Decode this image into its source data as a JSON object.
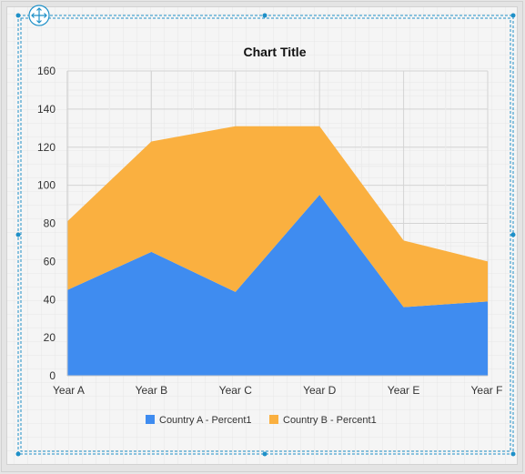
{
  "chart_data": {
    "type": "area",
    "stacked": true,
    "title": "Chart Title",
    "xlabel": "",
    "ylabel": "",
    "categories": [
      "Year A",
      "Year B",
      "Year C",
      "Year D",
      "Year E",
      "Year F"
    ],
    "series": [
      {
        "name": "Country A - Percent1",
        "values": [
          45,
          65,
          44,
          95,
          36,
          39
        ],
        "color": "#3f8cf0"
      },
      {
        "name": "Country B - Percent1",
        "values": [
          36,
          58,
          87,
          36,
          35,
          21
        ],
        "color": "#fab040"
      }
    ],
    "ylim": [
      0,
      160
    ],
    "yticks": [
      0,
      20,
      40,
      60,
      80,
      100,
      120,
      140,
      160
    ],
    "grid": true,
    "legend": "bottom"
  },
  "colors": {
    "selection": "#1e90c8",
    "designer_grid": "#e8e8e8",
    "chart_grid": "#d4d4d4",
    "axis_text": "#333333"
  },
  "icons": {
    "move_handle": "move-arrows-icon"
  }
}
